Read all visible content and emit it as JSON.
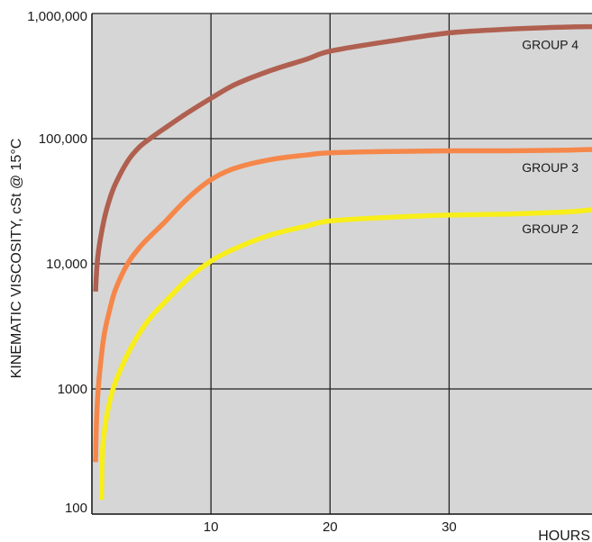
{
  "chart_data": {
    "type": "line",
    "title": "",
    "xlabel": "HOURS",
    "ylabel": "KINEMATIC VISCOSITY, cSt @ 15°C",
    "xlim": [
      0,
      42
    ],
    "ylim": [
      100,
      1000000
    ],
    "yscale": "log",
    "grid": true,
    "x_ticks": [
      10,
      20,
      30
    ],
    "x_tick_labels": [
      "10",
      "20",
      "30"
    ],
    "y_ticks": [
      100,
      1000,
      10000,
      100000,
      1000000
    ],
    "y_tick_labels": [
      "100",
      "1000",
      "10,000",
      "100,000",
      "1,000,000"
    ],
    "colors": {
      "plot_background": "#d6d6d6",
      "grid": "#222222",
      "group4": "#b06050",
      "group3": "#f5874a",
      "group2": "#f8ee1a"
    },
    "series": [
      {
        "name": "GROUP 4",
        "color": "#b06050",
        "x": [
          0.3,
          0.5,
          1,
          1.5,
          2,
          3,
          4,
          5,
          6,
          8,
          10,
          12,
          15,
          18,
          20,
          25,
          30,
          35,
          40,
          42
        ],
        "y": [
          6000,
          11500,
          22000,
          33000,
          44000,
          66000,
          86000,
          102000,
          119000,
          160000,
          210000,
          270000,
          350000,
          430000,
          500000,
          600000,
          700000,
          750000,
          780000,
          785000
        ]
      },
      {
        "name": "GROUP 3",
        "color": "#f5874a",
        "x": [
          0.3,
          0.4,
          0.6,
          1,
          1.5,
          2,
          3,
          4,
          5,
          6,
          8,
          10,
          12,
          15,
          18,
          20,
          25,
          30,
          35,
          40,
          42
        ],
        "y": [
          260,
          600,
          1200,
          2600,
          4300,
          6300,
          10000,
          13500,
          17000,
          21000,
          33000,
          47000,
          58000,
          68000,
          74000,
          77000,
          79000,
          80000,
          80000,
          81000,
          82000
        ]
      },
      {
        "name": "GROUP 2",
        "color": "#f8ee1a",
        "x": [
          0.8,
          0.9,
          1.2,
          1.6,
          2,
          3,
          4,
          5,
          6,
          8,
          10,
          12,
          15,
          18,
          20,
          25,
          30,
          35,
          40,
          42
        ],
        "y": [
          130,
          330,
          580,
          870,
          1150,
          1900,
          2800,
          3800,
          4800,
          7500,
          10500,
          13200,
          17000,
          20000,
          22000,
          23500,
          24500,
          25000,
          26000,
          27000
        ]
      }
    ]
  }
}
